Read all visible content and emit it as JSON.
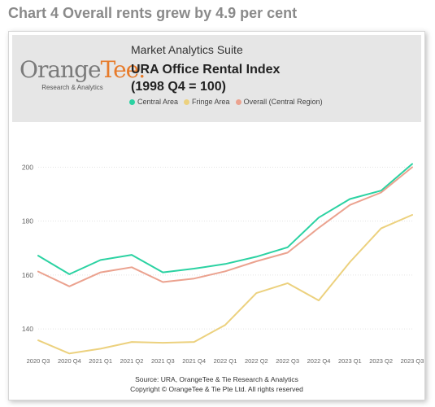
{
  "heading": "Chart 4 Overall rents grew by 4.9 per cent",
  "header": {
    "logo_main": "OrangeTee.",
    "logo_sub": "Research & Analytics",
    "suite": "Market Analytics Suite",
    "title_line1": "URA Office Rental Index",
    "title_line2": "(1998 Q4 = 100)"
  },
  "colors": {
    "central": "#2bd2a2",
    "fringe": "#ecd17e",
    "overall": "#eba28f",
    "grid": "#e3e3e3",
    "tick": "#666666"
  },
  "legend": [
    {
      "label": "Central Area",
      "color": "#2bd2a2"
    },
    {
      "label": "Fringe Area",
      "color": "#ecd17e"
    },
    {
      "label": "Overall (Central Region)",
      "color": "#eba28f"
    }
  ],
  "footer": {
    "source": "Source: URA, OrangeTee & Tie Research & Analytics",
    "copyright": "Copyright © OrangeTee & Tie Pte Ltd. All rights reserved"
  },
  "chart_data": {
    "type": "line",
    "x": [
      "2020 Q3",
      "2020 Q4",
      "2021 Q1",
      "2021 Q2",
      "2021 Q3",
      "2021 Q4",
      "2022 Q1",
      "2022 Q2",
      "2022 Q3",
      "2022 Q4",
      "2023 Q1",
      "2023 Q2",
      "2023 Q3"
    ],
    "y_ticks": [
      140,
      160,
      180,
      200
    ],
    "ylim": [
      131,
      214
    ],
    "grid": true,
    "legend_position": "top",
    "series": [
      {
        "name": "Central Area",
        "color": "#2bd2a2",
        "values": [
          167.2,
          160.3,
          165.6,
          167.5,
          161.0,
          162.4,
          164.1,
          166.8,
          170.3,
          181.3,
          188.2,
          191.3,
          201.2
        ]
      },
      {
        "name": "Fringe Area",
        "color": "#ecd17e",
        "values": [
          135.8,
          130.9,
          132.7,
          135.2,
          134.9,
          135.2,
          141.5,
          153.3,
          157.0,
          150.6,
          164.8,
          177.3,
          182.3
        ]
      },
      {
        "name": "Overall (Central Region)",
        "color": "#eba28f",
        "values": [
          161.3,
          155.8,
          161.0,
          162.9,
          157.4,
          158.7,
          161.4,
          165.1,
          168.3,
          177.5,
          186.0,
          190.6,
          200.0
        ]
      }
    ]
  }
}
